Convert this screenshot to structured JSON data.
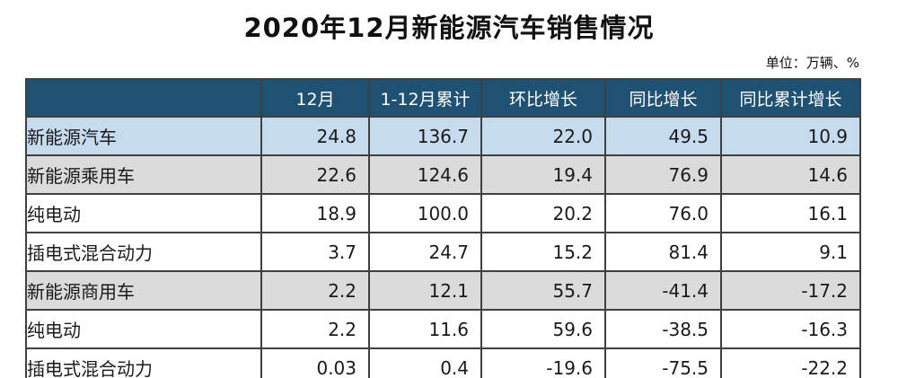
{
  "chart_data": {
    "type": "table",
    "title": "2020年12月新能源汽车销售情况",
    "unit_note": "单位：万辆、%",
    "columns": [
      "",
      "12月",
      "1-12月累计",
      "环比增长",
      "同比增长",
      "同比累计增长"
    ],
    "rows": [
      {
        "label": "新能源汽车",
        "indent": 0,
        "values": [
          "24.8",
          "136.7",
          "22.0",
          "49.5",
          "10.9"
        ]
      },
      {
        "label": "新能源乘用车",
        "indent": 1,
        "values": [
          "22.6",
          "124.6",
          "19.4",
          "76.9",
          "14.6"
        ]
      },
      {
        "label": "纯电动",
        "indent": 2,
        "values": [
          "18.9",
          "100.0",
          "20.2",
          "76.0",
          "16.1"
        ]
      },
      {
        "label": "插电式混合动力",
        "indent": 2,
        "values": [
          "3.7",
          "24.7",
          "15.2",
          "81.4",
          "9.1"
        ]
      },
      {
        "label": "新能源商用车",
        "indent": 1,
        "values": [
          "2.2",
          "12.1",
          "55.7",
          "-41.4",
          "-17.2"
        ]
      },
      {
        "label": "纯电动",
        "indent": 2,
        "values": [
          "2.2",
          "11.6",
          "59.6",
          "-38.5",
          "-16.3"
        ]
      },
      {
        "label": "插电式混合动力",
        "indent": 2,
        "values": [
          "0.03",
          "0.4",
          "-19.6",
          "-75.5",
          "-22.2"
        ]
      }
    ]
  },
  "colors": {
    "header_bg": "#1F5173",
    "header_text": "#FFFFFF",
    "row_highlight_blue": "#C6DBEE",
    "row_highlight_gray": "#DBDBDB",
    "border": "#404040",
    "text": "#1A1A1A"
  }
}
